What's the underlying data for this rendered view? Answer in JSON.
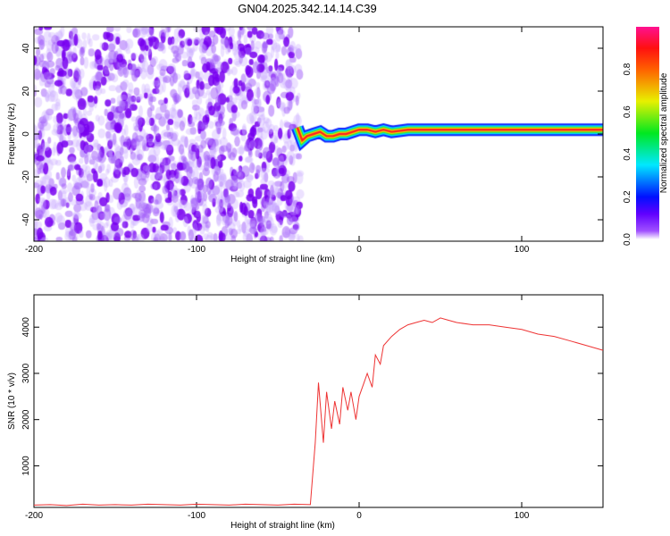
{
  "title": "GN04.2025.342.14.14.C39",
  "chart_data": [
    {
      "type": "heatmap",
      "xlabel": "Height of straight line (km)",
      "ylabel": "Frequency (Hz)",
      "xlim": [
        -200,
        150
      ],
      "ylim": [
        -50,
        50
      ],
      "xticks": [
        -200,
        -100,
        0,
        100
      ],
      "yticks": [
        -40,
        -20,
        0,
        20,
        40
      ],
      "noise_region_x": [
        -200,
        -36
      ],
      "ridge": {
        "x": [
          -38,
          -35,
          -32,
          -28,
          -24,
          -20,
          -16,
          -12,
          -8,
          -4,
          0,
          5,
          10,
          15,
          20,
          30,
          50,
          80,
          110,
          150
        ],
        "freq": [
          3,
          -3,
          -1,
          0,
          1,
          -1,
          -1,
          0,
          0,
          1,
          2,
          2,
          1,
          2,
          1,
          2,
          2,
          2,
          2,
          2
        ]
      },
      "colorbar": {
        "label": "Normalized spectral amplitude",
        "ticks": [
          "0.0",
          "0.2",
          "0.4",
          "0.6",
          "0.8"
        ],
        "range": [
          0,
          1
        ]
      }
    },
    {
      "type": "line",
      "xlabel": "Height of straight line (km)",
      "ylabel": "SNR (10 * v/v)",
      "xlim": [
        -200,
        150
      ],
      "ylim": [
        100,
        4700
      ],
      "xticks": [
        -200,
        -100,
        0,
        100
      ],
      "yticks": [
        1000,
        2000,
        3000,
        4000
      ],
      "color": "#ee3333",
      "x": [
        -200,
        -190,
        -180,
        -170,
        -160,
        -150,
        -140,
        -130,
        -120,
        -110,
        -100,
        -90,
        -80,
        -70,
        -60,
        -50,
        -40,
        -30,
        -27,
        -25,
        -22,
        -20,
        -17,
        -15,
        -12,
        -10,
        -7,
        -5,
        -2,
        0,
        3,
        5,
        8,
        10,
        13,
        15,
        20,
        25,
        30,
        35,
        40,
        45,
        50,
        55,
        60,
        70,
        80,
        90,
        100,
        110,
        120,
        130,
        140,
        150
      ],
      "values": [
        150,
        160,
        140,
        170,
        150,
        160,
        150,
        170,
        160,
        150,
        170,
        160,
        150,
        170,
        160,
        150,
        170,
        160,
        1500,
        2800,
        1500,
        2600,
        1800,
        2400,
        1900,
        2700,
        2200,
        2600,
        2000,
        2500,
        2800,
        3000,
        2700,
        3400,
        3200,
        3600,
        3800,
        3950,
        4050,
        4100,
        4150,
        4100,
        4200,
        4150,
        4100,
        4050,
        4050,
        4000,
        3950,
        3850,
        3800,
        3700,
        3600,
        3500
      ]
    }
  ]
}
